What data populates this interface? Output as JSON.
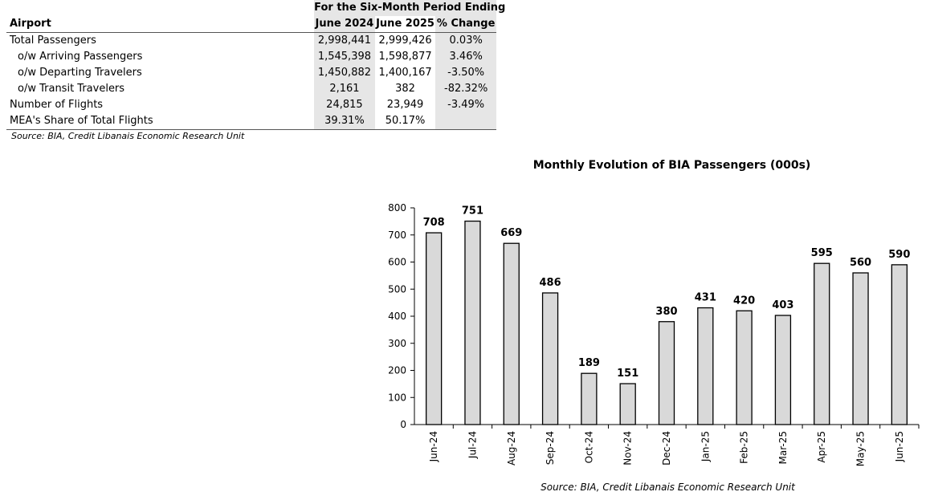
{
  "table": {
    "period_header": "For the Six-Month Period Ending",
    "columns": [
      "Airport",
      "June 2024",
      "June 2025",
      "% Change"
    ],
    "rows": [
      {
        "label": "Total Passengers",
        "v2024": "2,998,441",
        "v2025": "2,999,426",
        "change": "0.03%"
      },
      {
        "label": "o/w Arriving Passengers",
        "v2024": "1,545,398",
        "v2025": "1,598,877",
        "change": "3.46%"
      },
      {
        "label": "o/w Departing Travelers",
        "v2024": "1,450,882",
        "v2025": "1,400,167",
        "change": "-3.50%"
      },
      {
        "label": "o/w Transit Travelers",
        "v2024": "2,161",
        "v2025": "382",
        "change": "-82.32%"
      },
      {
        "label": "Number of Flights",
        "v2024": "24,815",
        "v2025": "23,949",
        "change": "-3.49%"
      },
      {
        "label": "MEA's Share of Total Flights",
        "v2024": "39.31%",
        "v2025": "50.17%",
        "change": ""
      }
    ],
    "source": "Source: BIA, Credit Libanais Economic Research Unit"
  },
  "chart_data": {
    "type": "bar",
    "title": "Monthly Evolution of BIA Passengers (000s)",
    "categories": [
      "Jun-24",
      "Jul-24",
      "Aug-24",
      "Sep-24",
      "Oct-24",
      "Nov-24",
      "Dec-24",
      "Jan-25",
      "Feb-25",
      "Mar-25",
      "Apr-25",
      "May-25",
      "Jun-25"
    ],
    "values": [
      708,
      751,
      669,
      486,
      189,
      151,
      380,
      431,
      420,
      403,
      595,
      560,
      590
    ],
    "yticks": [
      0,
      100,
      200,
      300,
      400,
      500,
      600,
      700,
      800
    ],
    "ylim": [
      0,
      800
    ],
    "xlabel": "",
    "ylabel": "",
    "grid": false,
    "bar_color": "#d9d9d9",
    "bar_edge_color": "#000000",
    "source": "Source: BIA, Credit Libanais Economic Research Unit"
  }
}
